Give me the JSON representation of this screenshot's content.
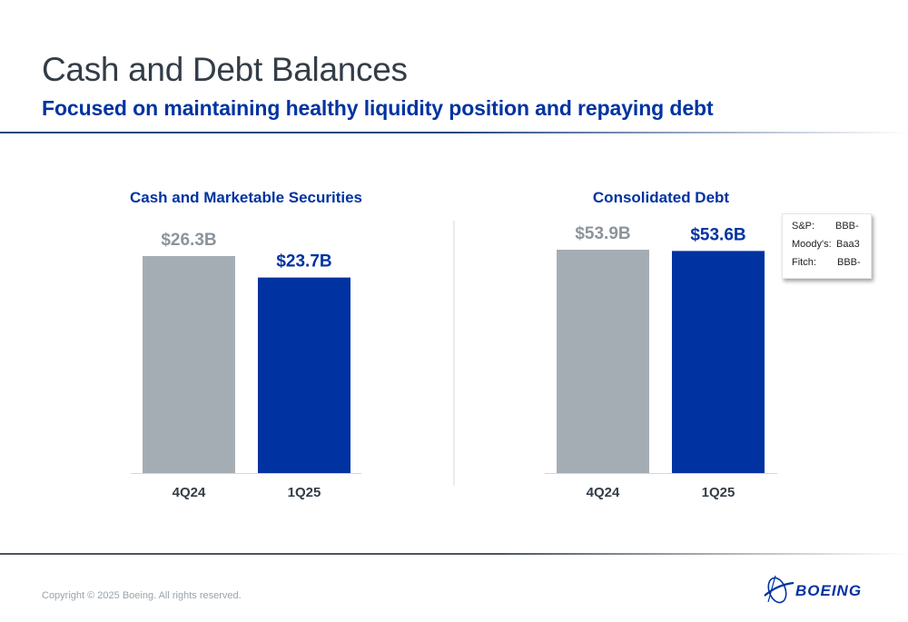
{
  "header": {
    "title": "Cash and Debt Balances",
    "subtitle": "Focused on maintaining healthy liquidity position and repaying debt"
  },
  "colors": {
    "prior_bar": "#a5adb4",
    "current_bar": "#0033a1",
    "prior_label": "#8c949b",
    "current_label": "#0033a1",
    "chart_title": "#0033a1",
    "axis_label": "#333d47"
  },
  "chart_data": [
    {
      "type": "bar",
      "title": "Cash and Marketable Securities",
      "unit": "$B",
      "categories": [
        "4Q24",
        "1Q25"
      ],
      "values": [
        26.3,
        23.7
      ],
      "data_labels": [
        "$26.3B",
        "$23.7B"
      ],
      "grid": false,
      "legend": "none"
    },
    {
      "type": "bar",
      "title": "Consolidated Debt",
      "unit": "$B",
      "categories": [
        "4Q24",
        "1Q25"
      ],
      "values": [
        53.9,
        53.6
      ],
      "data_labels": [
        "$53.9B",
        "$53.6B"
      ],
      "grid": false,
      "legend": "none"
    }
  ],
  "ratings": [
    {
      "agency": "S&P:",
      "rating": "BBB-"
    },
    {
      "agency": "Moody's:",
      "rating": "Baa3"
    },
    {
      "agency": "Fitch:",
      "rating": "BBB-"
    }
  ],
  "footer": {
    "copyright": "Copyright © 2025 Boeing. All rights reserved.",
    "logo_text": "BOEING"
  }
}
